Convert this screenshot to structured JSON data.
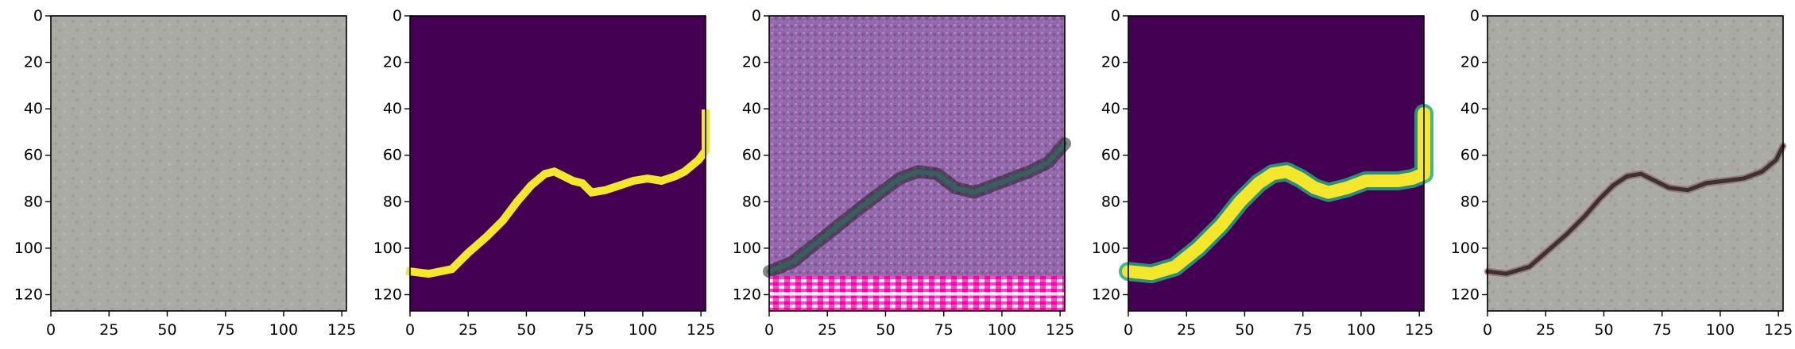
{
  "chart_data": [
    {
      "type": "image",
      "panel": "input-photo",
      "xticks": [
        0,
        25,
        50,
        75,
        100,
        125
      ],
      "yticks": [
        0,
        20,
        40,
        60,
        80,
        100,
        120
      ],
      "xlim": [
        0,
        127
      ],
      "ylim": [
        127,
        0
      ],
      "colors": {
        "base": "#a6a8a2",
        "shade": "#878a84",
        "light": "#bcbeb8"
      }
    },
    {
      "type": "image",
      "panel": "ground-truth-mask",
      "xticks": [
        0,
        25,
        50,
        75,
        100,
        125
      ],
      "yticks": [
        0,
        20,
        40,
        60,
        80,
        100,
        120
      ],
      "xlim": [
        0,
        127
      ],
      "ylim": [
        127,
        0
      ],
      "colors": {
        "background": "#440154",
        "foreground": "#f3e62b"
      },
      "crack_path": [
        [
          0,
          110
        ],
        [
          8,
          111
        ],
        [
          18,
          109
        ],
        [
          25,
          102
        ],
        [
          33,
          95
        ],
        [
          40,
          88
        ],
        [
          46,
          80
        ],
        [
          52,
          73
        ],
        [
          58,
          68
        ],
        [
          62,
          67
        ],
        [
          66,
          69
        ],
        [
          70,
          71
        ],
        [
          74,
          72
        ],
        [
          78,
          76
        ],
        [
          84,
          75
        ],
        [
          90,
          73
        ],
        [
          96,
          71
        ],
        [
          102,
          70
        ],
        [
          108,
          71
        ],
        [
          114,
          69
        ],
        [
          118,
          67
        ],
        [
          124,
          62
        ],
        [
          127,
          58
        ],
        [
          127,
          42
        ]
      ]
    },
    {
      "type": "image",
      "panel": "generated-texture",
      "xticks": [
        0,
        25,
        50,
        75,
        100,
        125
      ],
      "yticks": [
        0,
        20,
        40,
        60,
        80,
        100,
        120
      ],
      "xlim": [
        0,
        127
      ],
      "ylim": [
        127,
        0
      ],
      "colors": {
        "base": "#8a5ea3",
        "dark": "#5b3e73",
        "light": "#b78fc8",
        "stripe": "#ff33cc"
      },
      "crack_path": [
        [
          0,
          110
        ],
        [
          10,
          106
        ],
        [
          20,
          98
        ],
        [
          30,
          90
        ],
        [
          40,
          82
        ],
        [
          48,
          76
        ],
        [
          56,
          70
        ],
        [
          64,
          67
        ],
        [
          72,
          68
        ],
        [
          80,
          74
        ],
        [
          88,
          76
        ],
        [
          96,
          73
        ],
        [
          104,
          70
        ],
        [
          112,
          67
        ],
        [
          120,
          63
        ],
        [
          127,
          55
        ]
      ]
    },
    {
      "type": "image",
      "panel": "predicted-mask",
      "xticks": [
        0,
        25,
        50,
        75,
        100,
        125
      ],
      "yticks": [
        0,
        20,
        40,
        60,
        80,
        100,
        120
      ],
      "xlim": [
        0,
        127
      ],
      "ylim": [
        127,
        0
      ],
      "colors": {
        "background": "#440154",
        "foreground": "#f3e62b",
        "edge": "#22a884"
      },
      "crack_path": [
        [
          0,
          110
        ],
        [
          10,
          111
        ],
        [
          20,
          108
        ],
        [
          30,
          100
        ],
        [
          40,
          90
        ],
        [
          48,
          80
        ],
        [
          56,
          72
        ],
        [
          62,
          68
        ],
        [
          68,
          67
        ],
        [
          74,
          70
        ],
        [
          80,
          74
        ],
        [
          86,
          76
        ],
        [
          94,
          74
        ],
        [
          102,
          71
        ],
        [
          110,
          71
        ],
        [
          116,
          71
        ],
        [
          122,
          70
        ],
        [
          127,
          68
        ],
        [
          127,
          42
        ]
      ]
    },
    {
      "type": "image",
      "panel": "composite-overlay",
      "xticks": [
        0,
        25,
        50,
        75,
        100,
        125
      ],
      "yticks": [
        0,
        20,
        40,
        60,
        80,
        100,
        120
      ],
      "xlim": [
        0,
        127
      ],
      "ylim": [
        127,
        0
      ],
      "colors": {
        "base": "#a6a8a2",
        "crack": "#3a3330",
        "tint": "#8d4a5c"
      },
      "crack_path": [
        [
          0,
          110
        ],
        [
          8,
          111
        ],
        [
          18,
          108
        ],
        [
          26,
          101
        ],
        [
          34,
          94
        ],
        [
          42,
          86
        ],
        [
          48,
          79
        ],
        [
          54,
          73
        ],
        [
          60,
          69
        ],
        [
          66,
          68
        ],
        [
          72,
          71
        ],
        [
          78,
          74
        ],
        [
          86,
          75
        ],
        [
          94,
          72
        ],
        [
          102,
          71
        ],
        [
          110,
          70
        ],
        [
          118,
          67
        ],
        [
          124,
          62
        ],
        [
          127,
          56
        ]
      ]
    }
  ]
}
